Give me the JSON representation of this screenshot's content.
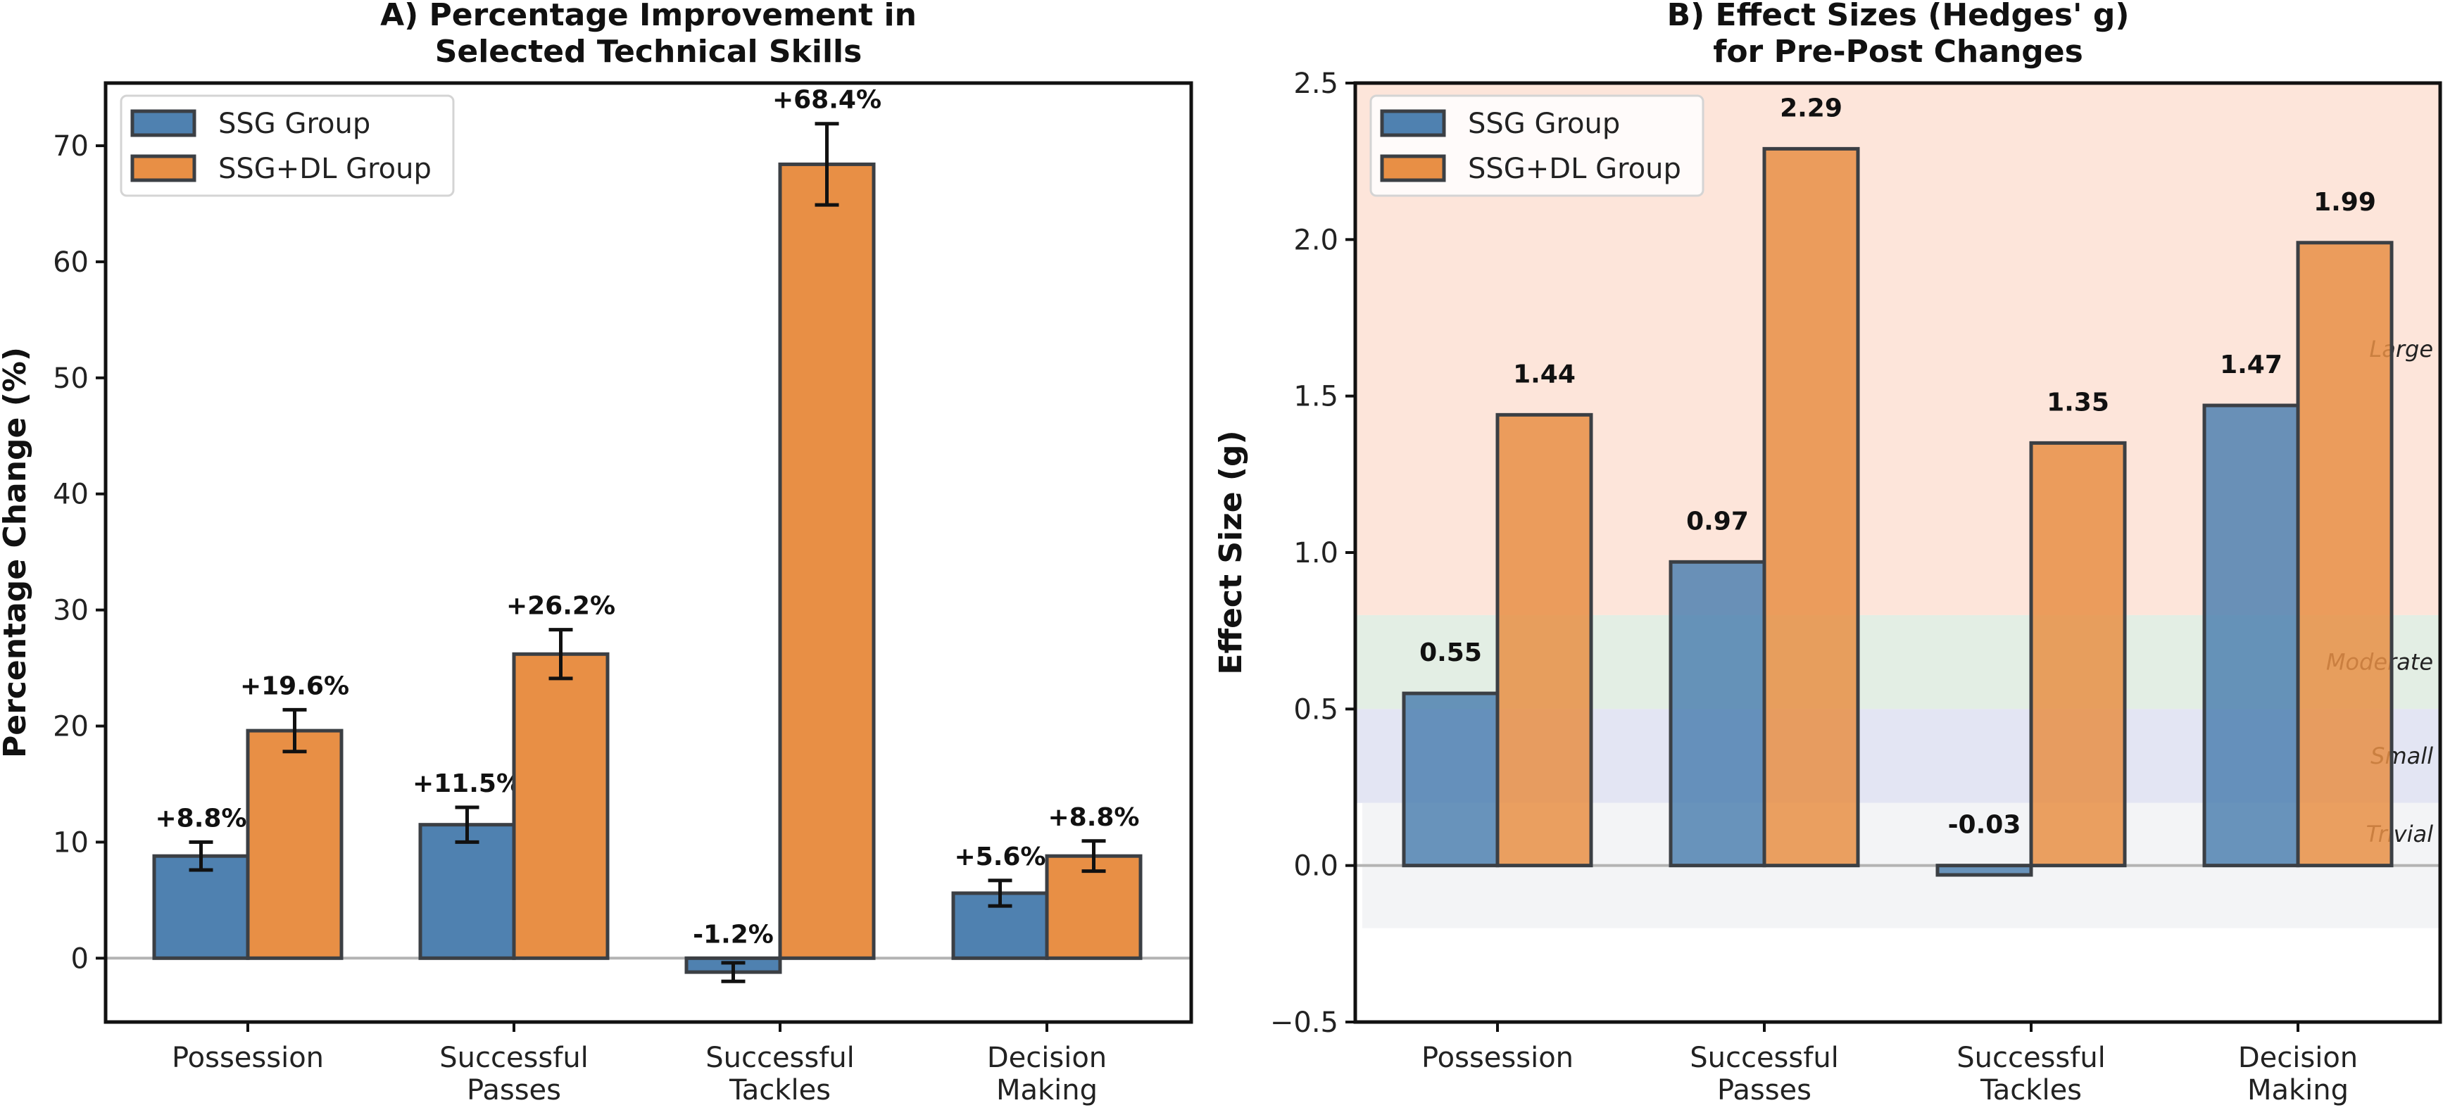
{
  "chart_data": [
    {
      "id": "A",
      "type": "bar",
      "title_lines": [
        "A) Percentage Improvement in",
        "Selected Technical Skills"
      ],
      "xlabel": "",
      "ylabel": "Percentage Change (%)",
      "ylim": [
        -5.5,
        75.4
      ],
      "yticks": [
        0,
        10,
        20,
        30,
        40,
        50,
        60,
        70
      ],
      "grid": false,
      "legend_position": "top-left",
      "categories": [
        [
          "Possession"
        ],
        [
          "Successful",
          "Passes"
        ],
        [
          "Successful",
          "Tackles"
        ],
        [
          "Decision",
          "Making"
        ]
      ],
      "series": [
        {
          "name": "SSG Group",
          "color": "#4f81b0",
          "values": [
            8.8,
            11.5,
            -1.2,
            5.6
          ],
          "errors": [
            1.2,
            1.5,
            0.8,
            1.1
          ],
          "labels": [
            "+8.8%",
            "+11.5%",
            "-1.2%",
            "+5.6%"
          ]
        },
        {
          "name": "SSG+DL Group",
          "color": "#e88f45",
          "values": [
            19.6,
            26.2,
            68.4,
            8.8
          ],
          "errors": [
            1.8,
            2.1,
            3.5,
            1.3
          ],
          "labels": [
            "+19.6%",
            "+26.2%",
            "+68.4%",
            "+8.8%"
          ]
        }
      ],
      "reference_line": 0
    },
    {
      "id": "B",
      "type": "bar",
      "title_lines": [
        "B) Effect Sizes (Hedges' g)",
        "for Pre-Post Changes"
      ],
      "xlabel": "",
      "ylabel": "Effect Size (g)",
      "ylim": [
        -0.5,
        2.5
      ],
      "yticks": [
        -0.5,
        0.0,
        0.5,
        1.0,
        1.5,
        2.0,
        2.5
      ],
      "ytick_labels": [
        "−0.5",
        "0.0",
        "0.5",
        "1.0",
        "1.5",
        "2.0",
        "2.5"
      ],
      "grid": false,
      "legend_position": "top-left",
      "categories": [
        [
          "Possession"
        ],
        [
          "Successful",
          "Passes"
        ],
        [
          "Successful",
          "Tackles"
        ],
        [
          "Decision",
          "Making"
        ]
      ],
      "series": [
        {
          "name": "SSG Group",
          "color": "#4f81b0",
          "values": [
            0.55,
            0.97,
            -0.03,
            1.47
          ],
          "labels": [
            "0.55",
            "0.97",
            "-0.03",
            "1.47"
          ]
        },
        {
          "name": "SSG+DL Group",
          "color": "#e88f45",
          "values": [
            1.44,
            2.29,
            1.35,
            1.99
          ],
          "labels": [
            "1.44",
            "2.29",
            "1.35",
            "1.99"
          ]
        }
      ],
      "bands": [
        {
          "label": "Large",
          "from": 0.8,
          "to": 2.5,
          "color": "#fde5da"
        },
        {
          "label": "Moderate",
          "from": 0.5,
          "to": 0.8,
          "color": "#e3eee4"
        },
        {
          "label": "Small",
          "from": 0.2,
          "to": 0.5,
          "color": "#e3e5f3"
        },
        {
          "label": "Trivial",
          "from": -0.2,
          "to": 0.2,
          "color": "#f3f4f6"
        }
      ],
      "reference_line": 0
    }
  ]
}
